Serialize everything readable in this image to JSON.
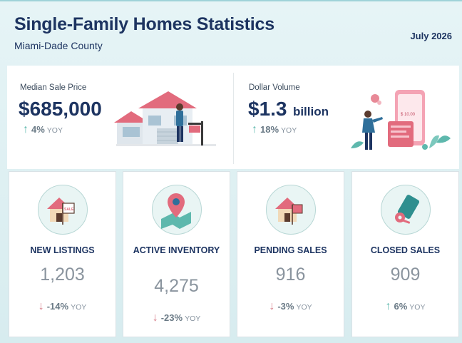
{
  "header": {
    "title": "Single-Family Homes Statistics",
    "subtitle": "Miami-Dade County",
    "date": "July 2026"
  },
  "kpis": [
    {
      "label": "Median Sale Price",
      "value": "$685,000",
      "unit": "",
      "direction": "up",
      "pct": "4%",
      "yoy": "YOY",
      "illustration": "house-with-sale-sign-illustration"
    },
    {
      "label": "Dollar Volume",
      "value": "$1.3",
      "unit": "billion",
      "direction": "up",
      "pct": "18%",
      "yoy": "YOY",
      "illustration": "phone-payment-illustration",
      "receipt_text": "$ 10.00"
    }
  ],
  "cards": [
    {
      "title": "NEW LISTINGS",
      "value": "1,203",
      "direction": "down",
      "pct": "-14%",
      "yoy": "YOY",
      "icon": "house-for-sale-icon",
      "sign_text": "SALE"
    },
    {
      "title": "ACTIVE INVENTORY",
      "value": "4,275",
      "direction": "down",
      "pct": "-23%",
      "yoy": "YOY",
      "icon": "map-pin-icon"
    },
    {
      "title": "PENDING SALES",
      "value": "916",
      "direction": "down",
      "pct": "-3%",
      "yoy": "YOY",
      "icon": "house-pending-icon"
    },
    {
      "title": "CLOSED SALES",
      "value": "909",
      "direction": "up",
      "pct": "6%",
      "yoy": "YOY",
      "icon": "house-keys-icon"
    }
  ],
  "arrows": {
    "up": "↑",
    "down": "↓"
  },
  "colors": {
    "navy": "#1d3461",
    "teal": "#5eb8ad",
    "pink": "#d57a86"
  }
}
